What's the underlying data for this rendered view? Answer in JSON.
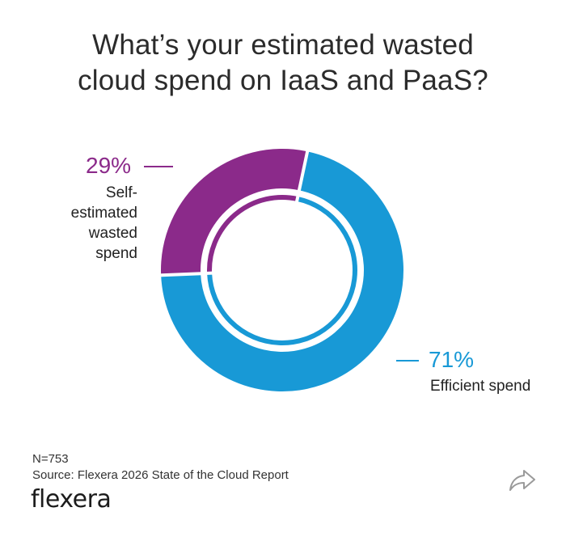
{
  "chart_data": {
    "type": "pie",
    "title_lines": [
      "What’s your estimated wasted",
      "cloud spend on IaaS and PaaS?"
    ],
    "slices": [
      {
        "name": "Self-estimated wasted spend",
        "label_lines": [
          "Self-estimated",
          "wasted spend"
        ],
        "value": 29,
        "value_label": "29%",
        "color": "#8b2a8a"
      },
      {
        "name": "Efficient spend",
        "label_lines": [
          "Efficient spend"
        ],
        "value": 71,
        "value_label": "71%",
        "color": "#1899d6"
      }
    ],
    "donut": true,
    "legend": "none"
  },
  "footer": {
    "sample": "N=753",
    "source": "Source: Flexera 2026 State of the Cloud Report"
  },
  "brand": {
    "logo_text": "flexera"
  },
  "share": {
    "icon": "share-icon"
  },
  "colors": {
    "title": "#2b2b2b",
    "leader_wasted": "#8b2a8a",
    "leader_efficient": "#1899d6"
  }
}
